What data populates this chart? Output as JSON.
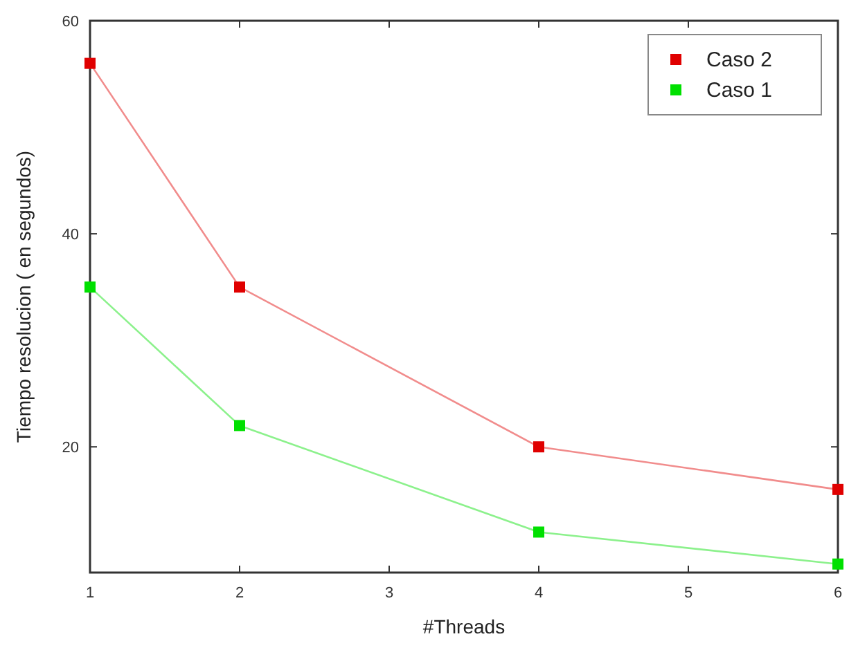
{
  "chart_data": {
    "type": "line",
    "xlabel": "#Threads",
    "ylabel": "Tiempo resolucion ( en  segundos)",
    "x": [
      1,
      2,
      4,
      6
    ],
    "series": [
      {
        "name": "Caso 2",
        "color": "#e00000",
        "values": [
          56,
          35,
          20,
          16
        ]
      },
      {
        "name": "Caso 1",
        "color": "#00e000",
        "values": [
          35,
          22,
          12,
          9
        ]
      }
    ],
    "xlim": [
      1,
      6
    ],
    "xticks": [
      1,
      2,
      3,
      4,
      5,
      6
    ],
    "ylim": [
      8.2,
      60
    ],
    "yticks": [
      20,
      40,
      60
    ],
    "legend": "top right",
    "marker": "square"
  }
}
